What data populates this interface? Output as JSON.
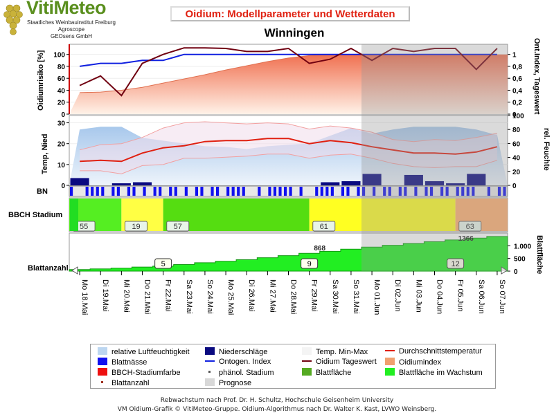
{
  "header": {
    "logo_title": "VitiMeteo",
    "logo_lines": [
      "Staatliches Weinbauinstitut Freiburg",
      "Agroscope",
      "GEOsens GmbH"
    ],
    "chart_title": "Oidium: Modellparameter und Wetterdaten",
    "location": "Winningen"
  },
  "axes": {
    "risk_label": "Oidiumrisiko [%]",
    "onto_label": "Ont.Index, Tageswert",
    "temp_label": "Temp, Nied",
    "hum_label": "rel. Feuchte",
    "bn_label": "BN",
    "bbch_label": "BBCH Stadium",
    "leaf_count_label": "Blattanzahl",
    "leaf_area_label": "Blattfläche",
    "risk_ticks": [
      "0",
      "20",
      "40",
      "60",
      "80",
      "100"
    ],
    "onto_ticks": [
      "0",
      "0,2",
      "0,4",
      "0,6",
      "0,8",
      "1"
    ],
    "temp_ticks": [
      "0",
      "10",
      "20",
      "30"
    ],
    "hum_ticks": [
      "0",
      "20",
      "40",
      "60",
      "80",
      "100"
    ],
    "area_ticks": [
      "0",
      "500",
      "1.000"
    ]
  },
  "chart_data": {
    "type": "line",
    "dates": [
      "Mo 18.Mai",
      "Di 19.Mai",
      "Mi 20.Mai",
      "Do 21.Mai",
      "Fr 22.Mai",
      "Sa 23.Mai",
      "So 24.Mai",
      "Mo 25.Mai",
      "Di 26.Mai",
      "Mi 27.Mai",
      "Do 28.Mai",
      "Fr 29.Mai",
      "Sa 30.Mai",
      "So 31.Mai",
      "Mo 01.Jun",
      "Di 02.Jun",
      "Mi 03.Jun",
      "Do 04.Jun",
      "Fr 05.Jun",
      "Sa 06.Jun",
      "So 07.Jun"
    ],
    "forecast_start_index": 14,
    "risk_panel": {
      "oidium_index_pct": [
        36,
        37,
        40,
        45,
        52,
        59,
        66,
        74,
        81,
        88,
        94,
        98,
        100,
        100,
        100,
        100,
        100,
        100,
        100,
        100,
        100
      ],
      "ontogenetic_index": [
        0.8,
        0.85,
        0.85,
        0.9,
        0.9,
        1.0,
        1.0,
        1.0,
        1.0,
        1.0,
        1.0,
        1.0,
        1.0,
        1.0,
        1.0,
        1.0,
        1.0,
        1.0,
        1.0,
        1.0,
        1.0
      ],
      "daily_value": [
        0.48,
        0.64,
        0.31,
        0.85,
        1.0,
        1.11,
        1.11,
        1.1,
        1.05,
        1.05,
        1.1,
        0.85,
        0.92,
        1.1,
        0.9,
        1.1,
        1.05,
        1.1,
        1.1,
        0.75,
        1.1
      ]
    },
    "weather_panel": {
      "temp_mean": [
        11.5,
        12,
        11.5,
        15.5,
        18,
        19,
        21,
        21.5,
        21.5,
        22.5,
        22.5,
        20,
        21.5,
        20.5,
        18.5,
        17,
        15.5,
        15.5,
        15,
        16,
        18.5
      ],
      "temp_max": [
        17,
        19.5,
        20,
        23,
        27.5,
        30,
        30.5,
        30,
        29.5,
        30,
        29.5,
        27,
        28.5,
        27.5,
        25.5,
        22,
        21,
        22,
        21.5,
        23,
        25
      ],
      "temp_min": [
        7,
        7,
        5.5,
        9.5,
        10,
        13,
        13,
        13.5,
        14,
        15,
        15,
        13,
        14.5,
        15,
        13,
        10.5,
        9,
        8.5,
        9,
        9,
        12
      ],
      "rel_humidity": [
        80,
        84,
        84,
        68,
        64,
        60,
        56,
        55,
        52,
        56,
        58,
        60,
        71,
        82,
        74,
        80,
        84,
        84,
        84,
        80,
        72
      ],
      "precipitation": [
        3.5,
        0,
        1,
        1.5,
        0,
        0,
        0,
        0,
        0,
        0,
        0,
        0,
        1.5,
        2,
        5.5,
        0,
        5,
        2,
        1,
        5.5,
        0
      ]
    },
    "leaf_wetness": "binary bands per hour",
    "bbch": [
      {
        "stage": "55",
        "start": 0,
        "end": 2.5,
        "color": "#55ee22"
      },
      {
        "stage": "19",
        "start": 2.5,
        "end": 4.5,
        "color": "#ffff44"
      },
      {
        "stage": "57",
        "start": 4.5,
        "end": 11.5,
        "color": "#55dd11"
      },
      {
        "stage": "61",
        "start": 11.5,
        "end": 18.5,
        "color": "#ffff22"
      },
      {
        "stage": "63",
        "start": 18.5,
        "end": 21,
        "color": "#ffb070"
      }
    ],
    "leaf_count_labels": [
      {
        "text": "5",
        "at": 4.5
      },
      {
        "text": "9",
        "at": 11.5
      },
      {
        "text": "12",
        "at": 18.5
      }
    ],
    "leaf_area": [
      60,
      90,
      120,
      160,
      200,
      260,
      330,
      390,
      450,
      530,
      610,
      700,
      780,
      868,
      950,
      1020,
      1090,
      1160,
      1230,
      1300,
      1366
    ],
    "leaf_area_annotations": [
      {
        "text": "868",
        "at": 11.5
      },
      {
        "text": "1366",
        "at": 18.5
      }
    ]
  },
  "legend": {
    "items": [
      {
        "label": "relative Luftfeuchtigkeit",
        "kind": "swatch",
        "color": "#bcd6f0"
      },
      {
        "label": "Niederschläge",
        "kind": "swatch",
        "color": "#0a0a80"
      },
      {
        "label": "Temp. Min-Max",
        "kind": "swatch",
        "color": "#f4f4f4"
      },
      {
        "label": "Durchschnittstemperatur",
        "kind": "line",
        "color": "#e02010"
      },
      {
        "label": "Blattnässe",
        "kind": "swatch",
        "color": "#1010f0"
      },
      {
        "label": "Ontogen. Index",
        "kind": "line",
        "color": "#1020e0"
      },
      {
        "label": "Oidium Tageswert",
        "kind": "line",
        "color": "#700010"
      },
      {
        "label": "Oidiumindex",
        "kind": "swatch",
        "color": "#f0a070"
      },
      {
        "label": "BBCH-Stadiumfarbe",
        "kind": "swatch",
        "color": "#ee1010"
      },
      {
        "label": "phänol. Stadium",
        "kind": "dot",
        "color": "#555"
      },
      {
        "label": "Blattfläche",
        "kind": "swatch",
        "color": "#55aa22"
      },
      {
        "label": "Blattfläche im Wachstum",
        "kind": "swatch",
        "color": "#22ee22"
      },
      {
        "label": "Blattanzahl",
        "kind": "dot",
        "color": "#a03020"
      },
      {
        "label": "Prognose",
        "kind": "swatch",
        "color": "#d8d8d8"
      }
    ]
  },
  "footer": {
    "line1": "Rebwachstum nach Prof. Dr. H. Schultz, Hochschule Geisenheim University",
    "line2": "VM Oidium-Grafik © VitiMeteo-Gruppe. Oidium-Algorithmus nach Dr. Walter K. Kast, LVWO Weinsberg."
  }
}
